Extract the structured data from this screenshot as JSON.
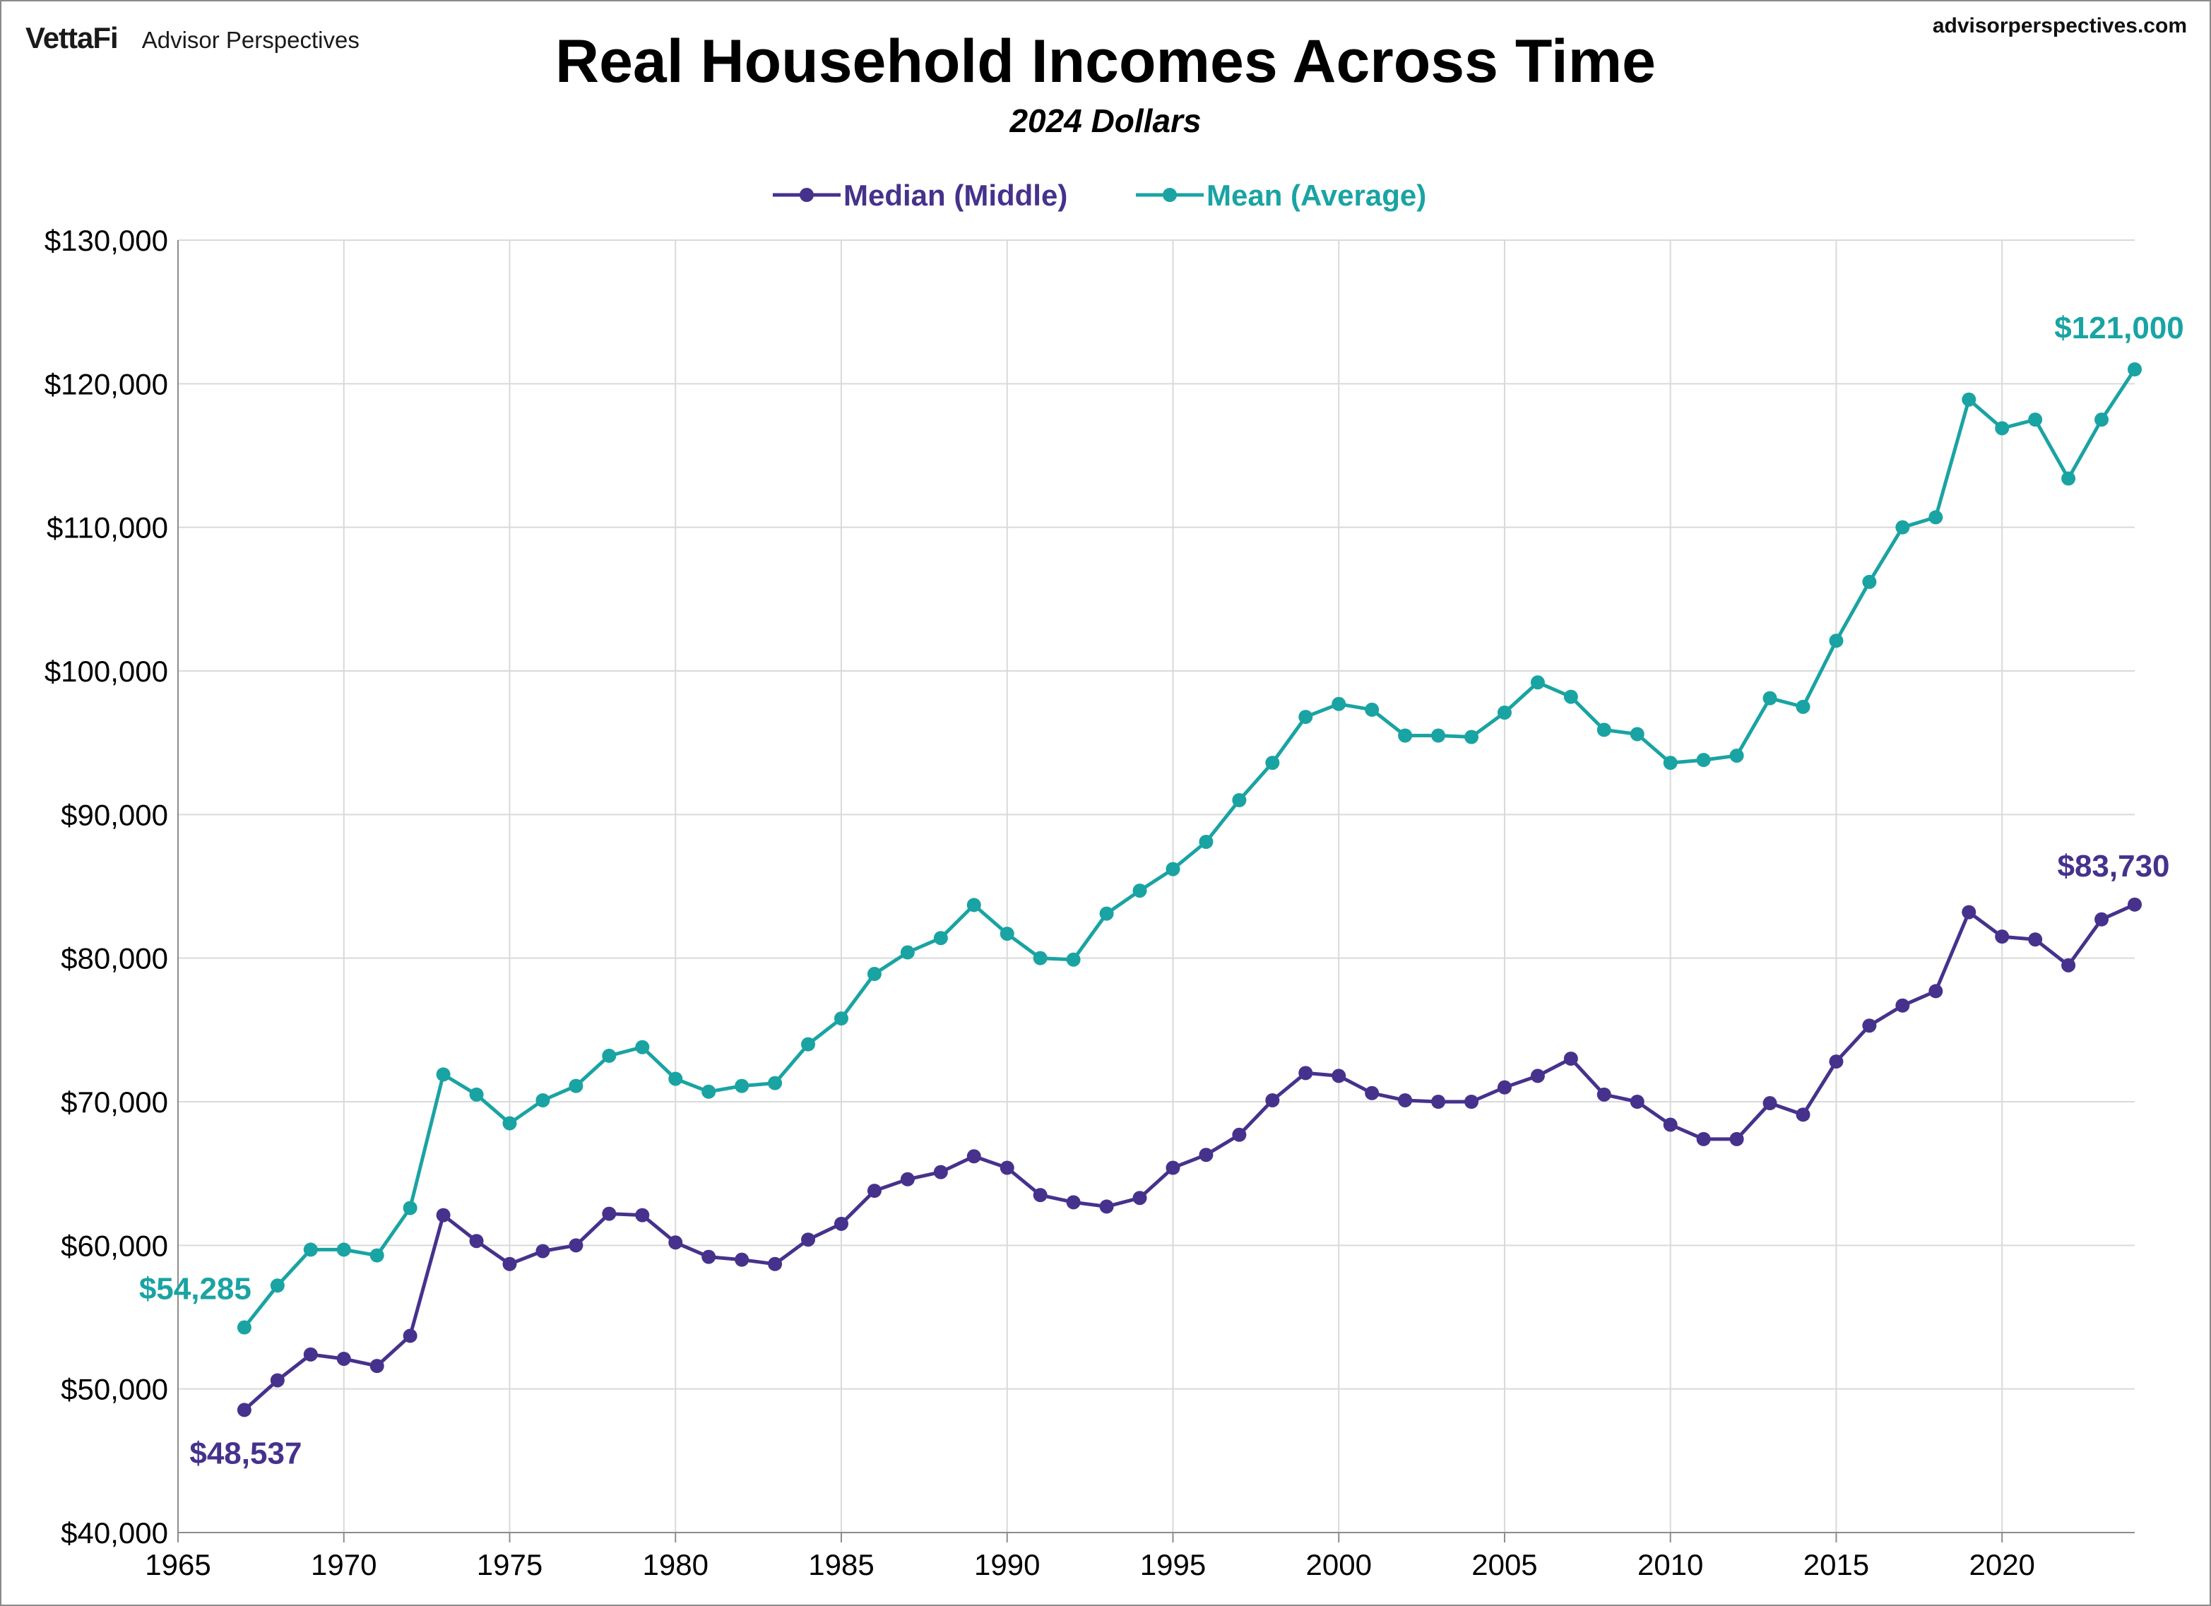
{
  "header": {
    "logo_text": "VettaFi",
    "brand_name": "Advisor Perspectives",
    "site_url": "advisorperspectives.com"
  },
  "chart_data": {
    "type": "line",
    "title": "Real Household Incomes Across Time",
    "subtitle": "2024 Dollars",
    "xlabel": "",
    "ylabel": "",
    "xlim": [
      1965,
      2024
    ],
    "ylim": [
      40000,
      130000
    ],
    "x_ticks": [
      1965,
      1970,
      1975,
      1980,
      1985,
      1990,
      1995,
      2000,
      2005,
      2010,
      2015,
      2020
    ],
    "x_tick_labels": [
      "1965",
      "1970",
      "1975",
      "1980",
      "1985",
      "1990",
      "1995",
      "2000",
      "2005",
      "2010",
      "2015",
      "2020"
    ],
    "y_ticks": [
      40000,
      50000,
      60000,
      70000,
      80000,
      90000,
      100000,
      110000,
      120000,
      130000
    ],
    "y_tick_labels": [
      "$40,000",
      "$50,000",
      "$60,000",
      "$70,000",
      "$80,000",
      "$90,000",
      "$100,000",
      "$110,000",
      "$120,000",
      "$130,000"
    ],
    "grid": true,
    "legend_position": "top-center",
    "x": [
      1967,
      1968,
      1969,
      1970,
      1971,
      1972,
      1973,
      1974,
      1975,
      1976,
      1977,
      1978,
      1979,
      1980,
      1981,
      1982,
      1983,
      1984,
      1985,
      1986,
      1987,
      1988,
      1989,
      1990,
      1991,
      1992,
      1993,
      1994,
      1995,
      1996,
      1997,
      1998,
      1999,
      2000,
      2001,
      2002,
      2003,
      2004,
      2005,
      2006,
      2007,
      2008,
      2009,
      2010,
      2011,
      2012,
      2013,
      2014,
      2015,
      2016,
      2017,
      2018,
      2019,
      2020,
      2021,
      2022,
      2023,
      2024
    ],
    "series": [
      {
        "name": "Median (Middle)",
        "color": "#46328c",
        "values": [
          48537,
          50600,
          52400,
          52100,
          51600,
          53700,
          62100,
          60300,
          58700,
          59600,
          60000,
          62200,
          62100,
          60200,
          59200,
          59000,
          58700,
          60400,
          61500,
          63800,
          64600,
          65100,
          66200,
          65400,
          63500,
          63000,
          62700,
          63300,
          65400,
          66300,
          67700,
          70100,
          72000,
          71800,
          70600,
          70100,
          70000,
          70000,
          71000,
          71800,
          73000,
          70500,
          70000,
          68400,
          67400,
          67400,
          69900,
          69100,
          72800,
          75300,
          76700,
          77700,
          83200,
          81500,
          81300,
          79500,
          82700,
          83730
        ],
        "start_label": "$48,537",
        "end_label": "$83,730"
      },
      {
        "name": "Mean (Average)",
        "color": "#1aa3a3",
        "values": [
          54285,
          57200,
          59700,
          59700,
          59300,
          62600,
          71900,
          70500,
          68500,
          70100,
          71100,
          73200,
          73800,
          71600,
          70700,
          71100,
          71300,
          74000,
          75800,
          78900,
          80400,
          81400,
          83700,
          81700,
          80000,
          79900,
          83100,
          84700,
          86200,
          88100,
          91000,
          93600,
          96800,
          97700,
          97300,
          95500,
          95500,
          95400,
          97100,
          99200,
          98200,
          95900,
          95600,
          93600,
          93800,
          94100,
          98100,
          97500,
          102100,
          106200,
          110000,
          110700,
          118900,
          116900,
          117500,
          113400,
          117500,
          121000
        ],
        "start_label": "$54,285",
        "end_label": "$121,000"
      }
    ]
  }
}
